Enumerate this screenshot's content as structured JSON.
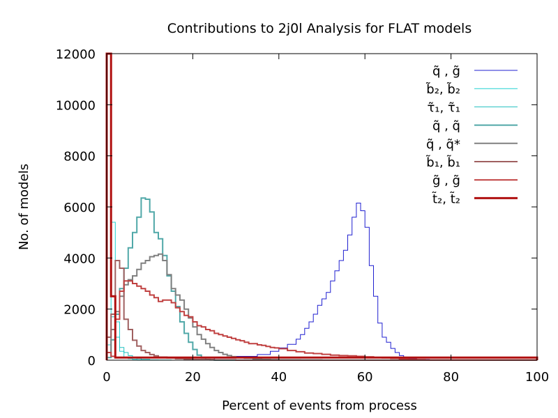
{
  "chart_data": {
    "type": "line",
    "title": "Contributions to 2j0l Analysis for FLAT models",
    "xlabel": "Percent of events from process",
    "ylabel": "No. of models",
    "xlim": [
      0,
      100
    ],
    "ylim": [
      0,
      12000
    ],
    "xticks": [
      0,
      20,
      40,
      60,
      80,
      100
    ],
    "yticks": [
      0,
      2000,
      4000,
      6000,
      8000,
      10000,
      12000
    ],
    "grid": false,
    "legend_position": "top-right",
    "series": [
      {
        "name": "q̃ , g̃",
        "color": "#1f1fd0",
        "stroke": 1,
        "x": [
          0,
          25,
          30,
          35,
          38,
          40,
          42,
          44,
          45,
          46,
          47,
          48,
          49,
          50,
          51,
          52,
          53,
          54,
          55,
          56,
          57,
          58,
          59,
          60,
          61,
          62,
          63,
          64,
          65,
          66,
          67,
          68,
          69,
          70,
          72,
          75,
          100
        ],
        "values": [
          0,
          80,
          150,
          220,
          350,
          480,
          620,
          820,
          1000,
          1250,
          1500,
          1800,
          2150,
          2400,
          2650,
          3100,
          3500,
          3900,
          4300,
          4900,
          5600,
          6150,
          5850,
          5200,
          3700,
          2500,
          1450,
          900,
          700,
          460,
          300,
          180,
          120,
          60,
          30,
          10,
          0
        ]
      },
      {
        "name": "b̃₂, b̃₂",
        "color": "#20d0d0",
        "stroke": 1,
        "x": [
          0,
          1,
          2,
          3,
          4,
          5,
          6,
          7,
          8,
          10,
          12,
          15,
          100
        ],
        "values": [
          600,
          5400,
          1500,
          350,
          120,
          60,
          30,
          15,
          8,
          4,
          2,
          0,
          0
        ]
      },
      {
        "name": "τ̃₁, τ̃₁",
        "color": "#20c0c0",
        "stroke": 1,
        "x": [
          0,
          1,
          2,
          3,
          4,
          5,
          6,
          7,
          8,
          10,
          12,
          15,
          100
        ],
        "values": [
          900,
          1700,
          900,
          500,
          300,
          180,
          100,
          60,
          30,
          12,
          5,
          0,
          0
        ]
      },
      {
        "name": "q̃ , q̃",
        "color": "#50a8a8",
        "stroke": 2,
        "x": [
          0,
          1,
          2,
          3,
          4,
          5,
          6,
          7,
          8,
          9,
          10,
          11,
          12,
          13,
          14,
          15,
          16,
          17,
          18,
          19,
          20,
          21,
          22,
          23,
          24,
          25,
          100
        ],
        "values": [
          100,
          800,
          1800,
          2800,
          3600,
          4400,
          5000,
          5600,
          6350,
          6300,
          5800,
          5000,
          4750,
          4100,
          3300,
          2700,
          2100,
          1500,
          1050,
          700,
          420,
          200,
          90,
          30,
          10,
          0,
          0
        ]
      },
      {
        "name": "q̃ , q̃*",
        "color": "#808080",
        "stroke": 2,
        "x": [
          0,
          1,
          2,
          3,
          4,
          5,
          6,
          7,
          8,
          9,
          10,
          11,
          12,
          13,
          14,
          15,
          16,
          17,
          18,
          19,
          20,
          21,
          22,
          23,
          24,
          25,
          26,
          27,
          28,
          29,
          30,
          32,
          34,
          36,
          38,
          40,
          45,
          50,
          100
        ],
        "values": [
          300,
          1200,
          1900,
          2500,
          2950,
          3150,
          3300,
          3550,
          3800,
          3900,
          4050,
          4100,
          4150,
          3900,
          3350,
          2800,
          2550,
          2350,
          2000,
          1650,
          1300,
          1000,
          820,
          650,
          500,
          380,
          300,
          230,
          180,
          140,
          110,
          80,
          50,
          30,
          20,
          10,
          5,
          0,
          0
        ]
      },
      {
        "name": "b̃₁, b̃₁",
        "color": "#a06060",
        "stroke": 2,
        "x": [
          0,
          1,
          2,
          3,
          4,
          5,
          6,
          7,
          8,
          9,
          10,
          11,
          12,
          14,
          16,
          18,
          20,
          25,
          30,
          100
        ],
        "values": [
          900,
          1800,
          3900,
          3600,
          1600,
          1200,
          780,
          550,
          380,
          300,
          220,
          170,
          120,
          90,
          60,
          40,
          25,
          10,
          0,
          0
        ]
      },
      {
        "name": "g̃ , g̃",
        "color": "#c04040",
        "stroke": 2,
        "x": [
          0,
          1,
          2,
          3,
          4,
          5,
          6,
          7,
          8,
          9,
          10,
          11,
          12,
          13,
          14,
          15,
          16,
          17,
          18,
          19,
          20,
          21,
          22,
          23,
          24,
          25,
          26,
          27,
          28,
          29,
          30,
          31,
          32,
          33,
          34,
          35,
          36,
          37,
          38,
          39,
          40,
          42,
          44,
          46,
          48,
          50,
          52,
          54,
          56,
          58,
          60,
          62,
          64,
          66,
          68,
          70,
          72,
          74,
          100
        ],
        "values": [
          300,
          150,
          1600,
          2700,
          3100,
          3100,
          3000,
          2900,
          2800,
          2700,
          2550,
          2450,
          2300,
          2350,
          2350,
          2250,
          2050,
          1900,
          1750,
          1700,
          1500,
          1350,
          1300,
          1200,
          1150,
          1050,
          1000,
          950,
          900,
          850,
          800,
          760,
          700,
          650,
          650,
          600,
          580,
          540,
          500,
          480,
          450,
          380,
          330,
          280,
          260,
          230,
          200,
          180,
          170,
          150,
          130,
          110,
          90,
          70,
          50,
          30,
          20,
          10,
          0
        ]
      },
      {
        "name": "t̃₂, t̃₂",
        "color": "#b01010",
        "stroke": 3,
        "x": [
          0,
          1,
          2,
          100
        ],
        "values": [
          12000,
          2500,
          100,
          0
        ]
      }
    ]
  }
}
